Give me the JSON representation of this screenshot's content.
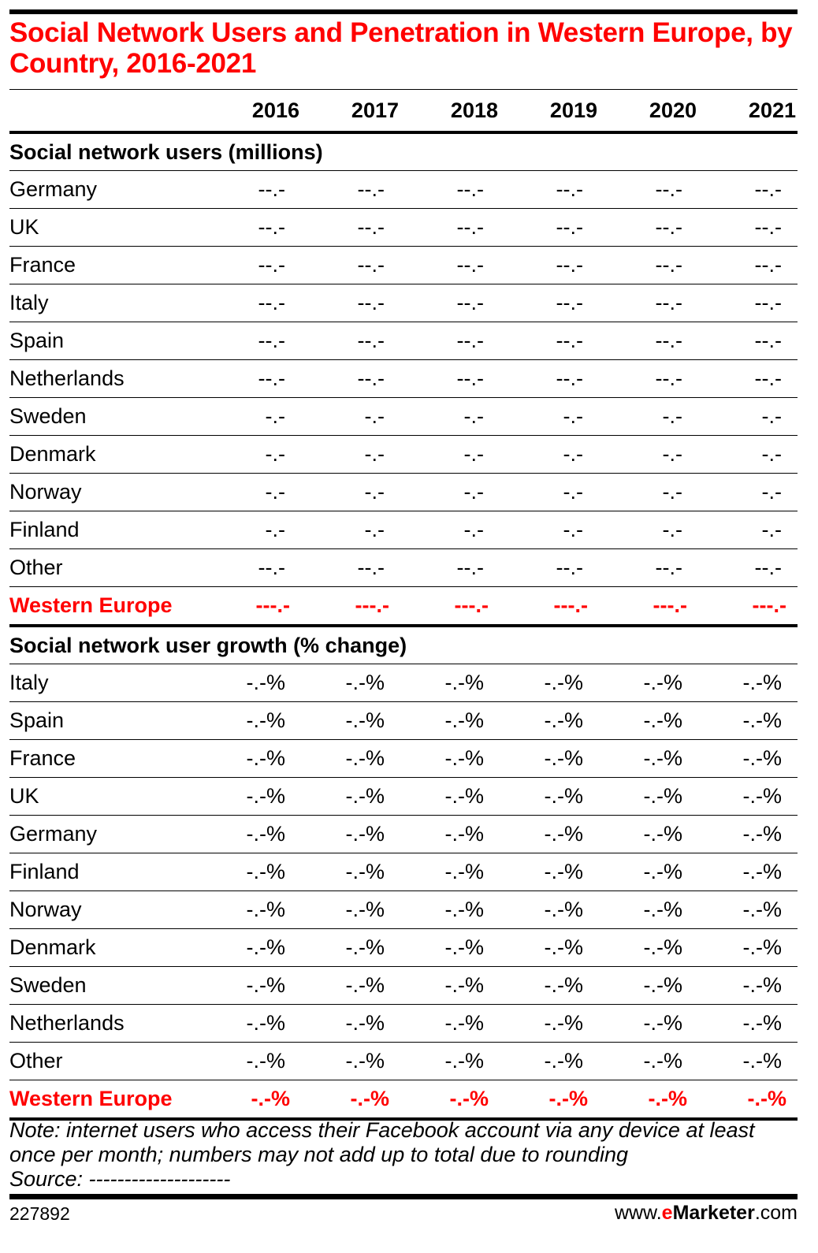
{
  "title": "Social Network Users and Penetration in Western Europe, by Country, 2016-2021",
  "chart_data": {
    "type": "table",
    "columns": [
      "2016",
      "2017",
      "2018",
      "2019",
      "2020",
      "2021"
    ],
    "sections": [
      {
        "heading": "Social network users (millions)",
        "rows": [
          {
            "label": "Germany",
            "values": [
              "--.-",
              "--.-",
              "--.-",
              "--.-",
              "--.-",
              "--.-"
            ]
          },
          {
            "label": "UK",
            "values": [
              "--.-",
              "--.-",
              "--.-",
              "--.-",
              "--.-",
              "--.-"
            ]
          },
          {
            "label": "France",
            "values": [
              "--.-",
              "--.-",
              "--.-",
              "--.-",
              "--.-",
              "--.-"
            ]
          },
          {
            "label": "Italy",
            "values": [
              "--.-",
              "--.-",
              "--.-",
              "--.-",
              "--.-",
              "--.-"
            ]
          },
          {
            "label": "Spain",
            "values": [
              "--.-",
              "--.-",
              "--.-",
              "--.-",
              "--.-",
              "--.-"
            ]
          },
          {
            "label": "Netherlands",
            "values": [
              "--.-",
              "--.-",
              "--.-",
              "--.-",
              "--.-",
              "--.-"
            ]
          },
          {
            "label": "Sweden",
            "values": [
              "-.-",
              "-.-",
              "-.-",
              "-.-",
              "-.-",
              "-.-"
            ]
          },
          {
            "label": "Denmark",
            "values": [
              "-.-",
              "-.-",
              "-.-",
              "-.-",
              "-.-",
              "-.-"
            ]
          },
          {
            "label": "Norway",
            "values": [
              "-.-",
              "-.-",
              "-.-",
              "-.-",
              "-.-",
              "-.-"
            ]
          },
          {
            "label": "Finland",
            "values": [
              "-.-",
              "-.-",
              "-.-",
              "-.-",
              "-.-",
              "-.-"
            ]
          },
          {
            "label": "Other",
            "values": [
              "--.-",
              "--.-",
              "--.-",
              "--.-",
              "--.-",
              "--.-"
            ]
          }
        ],
        "total": {
          "label": "Western Europe",
          "values": [
            "---.-",
            "---.-",
            "---.-",
            "---.-",
            "---.-",
            "---.-"
          ]
        }
      },
      {
        "heading": "Social network user growth (% change)",
        "rows": [
          {
            "label": "Italy",
            "values": [
              "-.-%",
              "-.-%",
              "-.-%",
              "-.-%",
              "-.-%",
              "-.-%"
            ]
          },
          {
            "label": "Spain",
            "values": [
              "-.-%",
              "-.-%",
              "-.-%",
              "-.-%",
              "-.-%",
              "-.-%"
            ]
          },
          {
            "label": "France",
            "values": [
              "-.-%",
              "-.-%",
              "-.-%",
              "-.-%",
              "-.-%",
              "-.-%"
            ]
          },
          {
            "label": "UK",
            "values": [
              "-.-%",
              "-.-%",
              "-.-%",
              "-.-%",
              "-.-%",
              "-.-%"
            ]
          },
          {
            "label": "Germany",
            "values": [
              "-.-%",
              "-.-%",
              "-.-%",
              "-.-%",
              "-.-%",
              "-.-%"
            ]
          },
          {
            "label": "Finland",
            "values": [
              "-.-%",
              "-.-%",
              "-.-%",
              "-.-%",
              "-.-%",
              "-.-%"
            ]
          },
          {
            "label": "Norway",
            "values": [
              "-.-%",
              "-.-%",
              "-.-%",
              "-.-%",
              "-.-%",
              "-.-%"
            ]
          },
          {
            "label": "Denmark",
            "values": [
              "-.-%",
              "-.-%",
              "-.-%",
              "-.-%",
              "-.-%",
              "-.-%"
            ]
          },
          {
            "label": "Sweden",
            "values": [
              "-.-%",
              "-.-%",
              "-.-%",
              "-.-%",
              "-.-%",
              "-.-%"
            ]
          },
          {
            "label": "Netherlands",
            "values": [
              "-.-%",
              "-.-%",
              "-.-%",
              "-.-%",
              "-.-%",
              "-.-%"
            ]
          },
          {
            "label": "Other",
            "values": [
              "-.-%",
              "-.-%",
              "-.-%",
              "-.-%",
              "-.-%",
              "-.-%"
            ]
          }
        ],
        "total": {
          "label": "Western Europe",
          "values": [
            "-.-%",
            "-.-%",
            "-.-%",
            "-.-%",
            "-.-%",
            "-.-%"
          ]
        }
      }
    ]
  },
  "note": "Note: internet users who access their Facebook account via any device at least once per month; numbers may not add up to total due to rounding",
  "source": "Source: --------------------",
  "chart_id": "227892",
  "brand": {
    "prefix": "www.",
    "e": "e",
    "name": "Marketer",
    ".com": ".com",
    "suffix": ".com"
  },
  "colors": {
    "accent": "#ff0000",
    "text": "#000000"
  }
}
